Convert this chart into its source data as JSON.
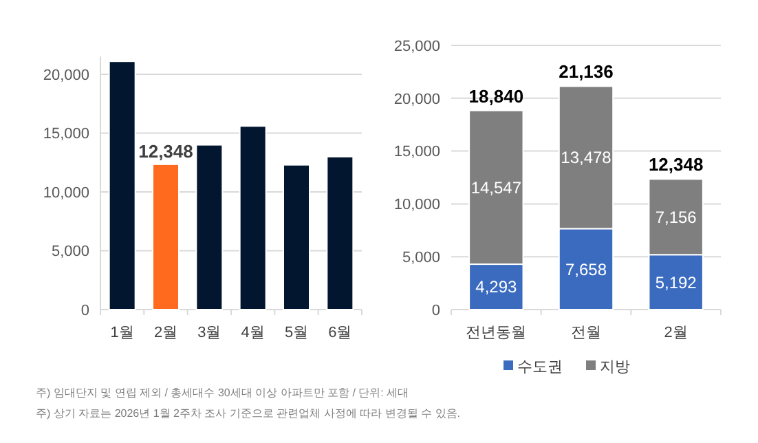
{
  "chart_data": [
    {
      "type": "bar",
      "categories": [
        "1월",
        "2월",
        "3월",
        "4월",
        "5월",
        "6월"
      ],
      "values": [
        21100,
        12348,
        14000,
        15600,
        12300,
        13000
      ],
      "colors": [
        "#02162f",
        "#ff6a1f",
        "#02162f",
        "#02162f",
        "#02162f",
        "#02162f"
      ],
      "value_labels": [
        null,
        "12,348",
        null,
        null,
        null,
        null
      ],
      "ylim": [
        0,
        21500
      ],
      "yticks": [
        {
          "value": 0,
          "label": "0"
        },
        {
          "value": 5000,
          "label": "5,000"
        },
        {
          "value": 10000,
          "label": "10,000"
        },
        {
          "value": 15000,
          "label": "15,000"
        },
        {
          "value": 20000,
          "label": "20,000"
        }
      ],
      "grid": "y",
      "annotations": [
        "주) 임대단지 및 연립 제외 / 총세대수 30세대 이상 아파트만 포함 / 단위: 세대",
        "주) 상기 자료는 2026년 1월 2주차 조사 기준으로 관련업체 사정에 따라 변경될 수 있음."
      ]
    },
    {
      "type": "bar",
      "stacked": true,
      "categories": [
        "전년동월",
        "전월",
        "2월"
      ],
      "series": [
        {
          "name": "수도권",
          "color": "#3a6bbf",
          "values": [
            4293,
            7658,
            5192
          ],
          "value_labels": [
            "4,293",
            "7,658",
            "5,192"
          ]
        },
        {
          "name": "지방",
          "color": "#7f7f7f",
          "values": [
            14547,
            13478,
            7156
          ],
          "value_labels": [
            "14,547",
            "13,478",
            "7,156"
          ]
        }
      ],
      "totals": [
        "18,840",
        "21,136",
        "12,348"
      ],
      "ylim": [
        0,
        25000
      ],
      "yticks": [
        {
          "value": 0,
          "label": "0"
        },
        {
          "value": 5000,
          "label": "5,000"
        },
        {
          "value": 10000,
          "label": "10,000"
        },
        {
          "value": 15000,
          "label": "15,000"
        },
        {
          "value": 20000,
          "label": "20,000"
        },
        {
          "value": 25000,
          "label": "25,000"
        }
      ],
      "grid": "y",
      "legend": "bottom"
    }
  ]
}
